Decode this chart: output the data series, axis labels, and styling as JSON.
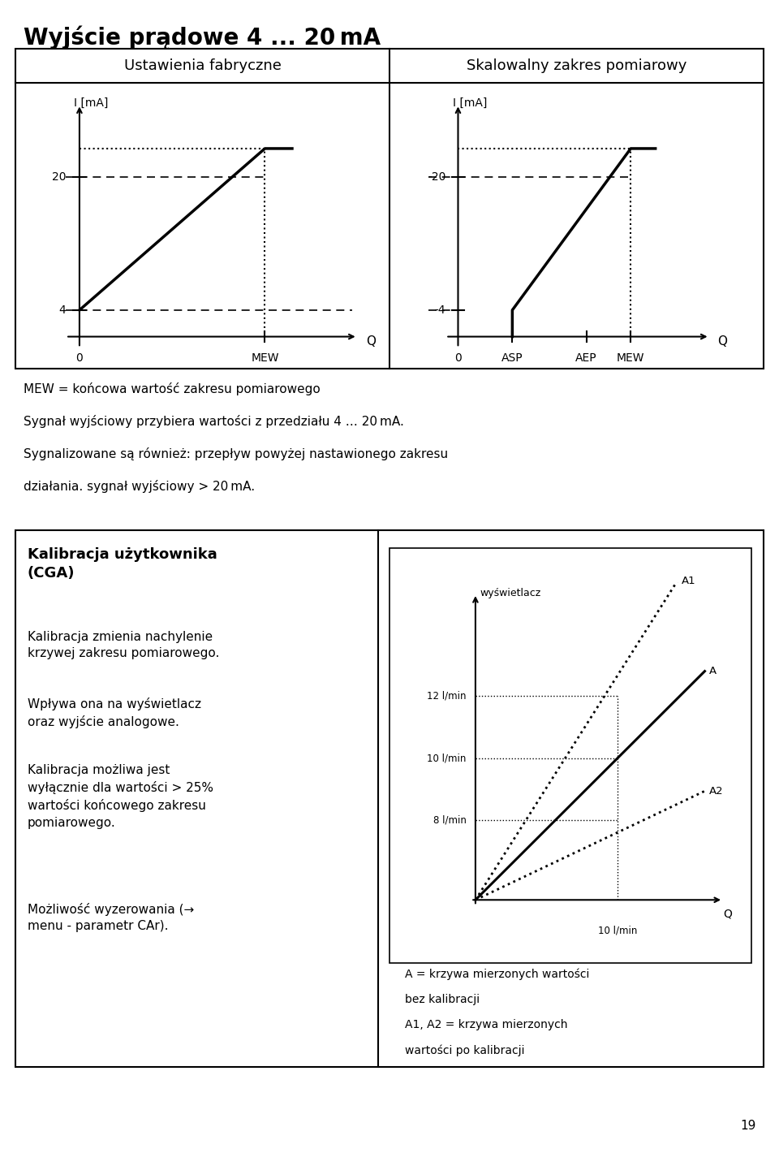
{
  "title": "Wyjście prądowe 4 ... 20 mA",
  "title_fontsize": 20,
  "bg_color": "#ffffff",
  "text_color": "#000000",
  "left_panel_title": "Ustawienia fabryczne",
  "right_panel_title": "Skalowalny zakres pomiarowy",
  "panel_title_fontsize": 13,
  "left_ylabel": "I [mA]",
  "right_ylabel": "I [mA]",
  "mew_text": "MEW = końcowa wartość zakresu pomiarowego",
  "signal_text": "Sygnał wyjściowy przybiera wartości z przedziału 4 … 20 mA.",
  "syngnalizowane_text": "Sygnalizowane są również: przepływ powyżej nastawionego zakresu",
  "dzialania_text": "działania. sygnał wyjściowy > 20 mA.",
  "kalibracja_title": "Kalibracja użytkownika\n(CGA)",
  "kalibracja_p1": "Kalibracja zmienia nachylenie\nkrzywej zakresu pomiarowego.",
  "kalibracja_p2": "Wpływa ona na wyświetlacz\noraz wyjście analogowe.",
  "kalibracja_p3": "Kalibracja możliwa jest\nwyłącznie dla wartości > 25%\nwartości końcowego zakresu\npomiarowego.",
  "kalibracja_p4": "Możliwość wyzerowania (→\nmenu - parametr CAr).",
  "right_box_ylabel": "wyświetlacz",
  "right_box_xlabel": "Q",
  "right_box_y12": "12 l/min",
  "right_box_y10": "10 l/min",
  "right_box_y8": "8 l/min",
  "right_box_x10": "10 l/min",
  "right_box_A_label": "A",
  "right_box_A1_label": "A1",
  "right_box_A2_label": "A2",
  "legend_text1": "A = krzywa mierzonych wartości",
  "legend_text2": "bez kalibracji",
  "legend_text3": "A1, A2 = krzywa mierzonych",
  "legend_text4": "wartości po kalibracji",
  "page_number": "19"
}
